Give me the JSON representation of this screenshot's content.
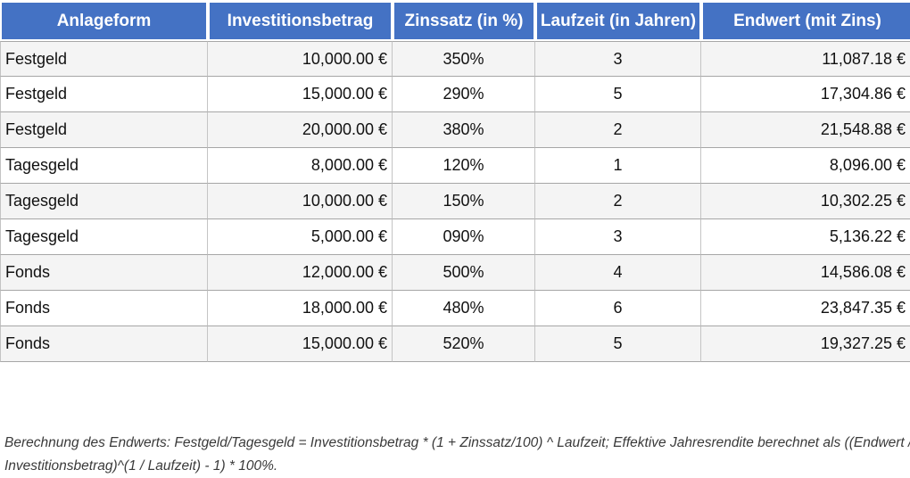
{
  "colors": {
    "header_bg": "#4472C4",
    "header_text": "#FFFFFF",
    "row_alt_bg": "#F4F4F4",
    "row_bg": "#FFFFFF",
    "grid_horizontal": "#A6A6A6",
    "grid_vertical": "#C4C4C4",
    "body_text": "#111111",
    "note_text": "#3A3A3A"
  },
  "table": {
    "columns": [
      {
        "label": "Anlageform",
        "align": "left"
      },
      {
        "label": "Investitionsbetrag",
        "align": "right"
      },
      {
        "label": "Zinssatz (in %)",
        "align": "center"
      },
      {
        "label": "Laufzeit (in Jahren)",
        "align": "center"
      },
      {
        "label": "Endwert (mit Zins)",
        "align": "right"
      }
    ],
    "rows": [
      [
        "Festgeld",
        "10,000.00 €",
        "350%",
        "3",
        "11,087.18 €"
      ],
      [
        "Festgeld",
        "15,000.00 €",
        "290%",
        "5",
        "17,304.86 €"
      ],
      [
        "Festgeld",
        "20,000.00 €",
        "380%",
        "2",
        "21,548.88 €"
      ],
      [
        "Tagesgeld",
        "8,000.00 €",
        "120%",
        "1",
        "8,096.00 €"
      ],
      [
        "Tagesgeld",
        "10,000.00 €",
        "150%",
        "2",
        "10,302.25 €"
      ],
      [
        "Tagesgeld",
        "5,000.00 €",
        "090%",
        "3",
        "5,136.22 €"
      ],
      [
        "Fonds",
        "12,000.00 €",
        "500%",
        "4",
        "14,586.08 €"
      ],
      [
        "Fonds",
        "18,000.00 €",
        "480%",
        "6",
        "23,847.35 €"
      ],
      [
        "Fonds",
        "15,000.00 €",
        "520%",
        "5",
        "19,327.25 €"
      ]
    ]
  },
  "note": {
    "line1": "Berechnung des Endwerts: Festgeld/Tagesgeld = Investitionsbetrag * (1 + Zinssatz/100) ^ Laufzeit; Effektive Jahresrendite berechnet als ((Endwert /",
    "line2": "Investitionsbetrag)^(1 / Laufzeit) - 1) * 100%."
  }
}
